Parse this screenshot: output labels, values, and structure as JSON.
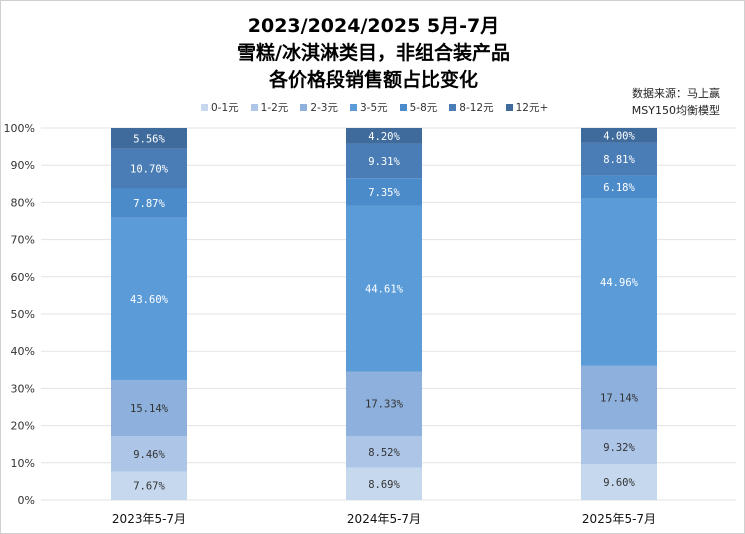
{
  "chart_data": {
    "type": "bar",
    "stacked": true,
    "title_lines": [
      "2023/2024/2025 5月-7月",
      "雪糕/冰淇淋类目，非组合装产品",
      "各价格段销售额占比变化"
    ],
    "source_lines": [
      "数据来源：马上赢",
      "MSY150均衡模型"
    ],
    "categories": [
      "2023年5-7月",
      "2024年5-7月",
      "2025年5-7月"
    ],
    "ylim": [
      0,
      100
    ],
    "yticks": [
      "0%",
      "10%",
      "20%",
      "30%",
      "40%",
      "50%",
      "60%",
      "70%",
      "80%",
      "90%",
      "100%"
    ],
    "grid": true,
    "legend_position": "top",
    "series": [
      {
        "name": "0-1元",
        "color": "#c6d8ee",
        "values": [
          7.67,
          8.69,
          9.6
        ],
        "labels": [
          "7.67%",
          "8.69%",
          "9.60%"
        ]
      },
      {
        "name": "1-2元",
        "color": "#adc6e7",
        "values": [
          9.46,
          8.52,
          9.32
        ],
        "labels": [
          "9.46%",
          "8.52%",
          "9.32%"
        ]
      },
      {
        "name": "2-3元",
        "color": "#8db0dd",
        "values": [
          15.14,
          17.33,
          17.14
        ],
        "labels": [
          "15.14%",
          "17.33%",
          "17.14%"
        ]
      },
      {
        "name": "3-5元",
        "color": "#5a9bd8",
        "values": [
          43.6,
          44.61,
          44.96
        ],
        "labels": [
          "43.60%",
          "44.61%",
          "44.96%"
        ]
      },
      {
        "name": "5-8元",
        "color": "#4c8bc9",
        "values": [
          7.87,
          7.35,
          6.18
        ],
        "labels": [
          "7.87%",
          "7.35%",
          "6.18%"
        ]
      },
      {
        "name": "8-12元",
        "color": "#4a7db6",
        "values": [
          10.7,
          9.31,
          8.81
        ],
        "labels": [
          "10.70%",
          "9.31%",
          "8.81%"
        ]
      },
      {
        "name": "12元+",
        "color": "#3e6a9c",
        "values": [
          5.56,
          4.2,
          4.0
        ],
        "labels": [
          "5.56%",
          "4.20%",
          "4.00%"
        ]
      }
    ]
  }
}
